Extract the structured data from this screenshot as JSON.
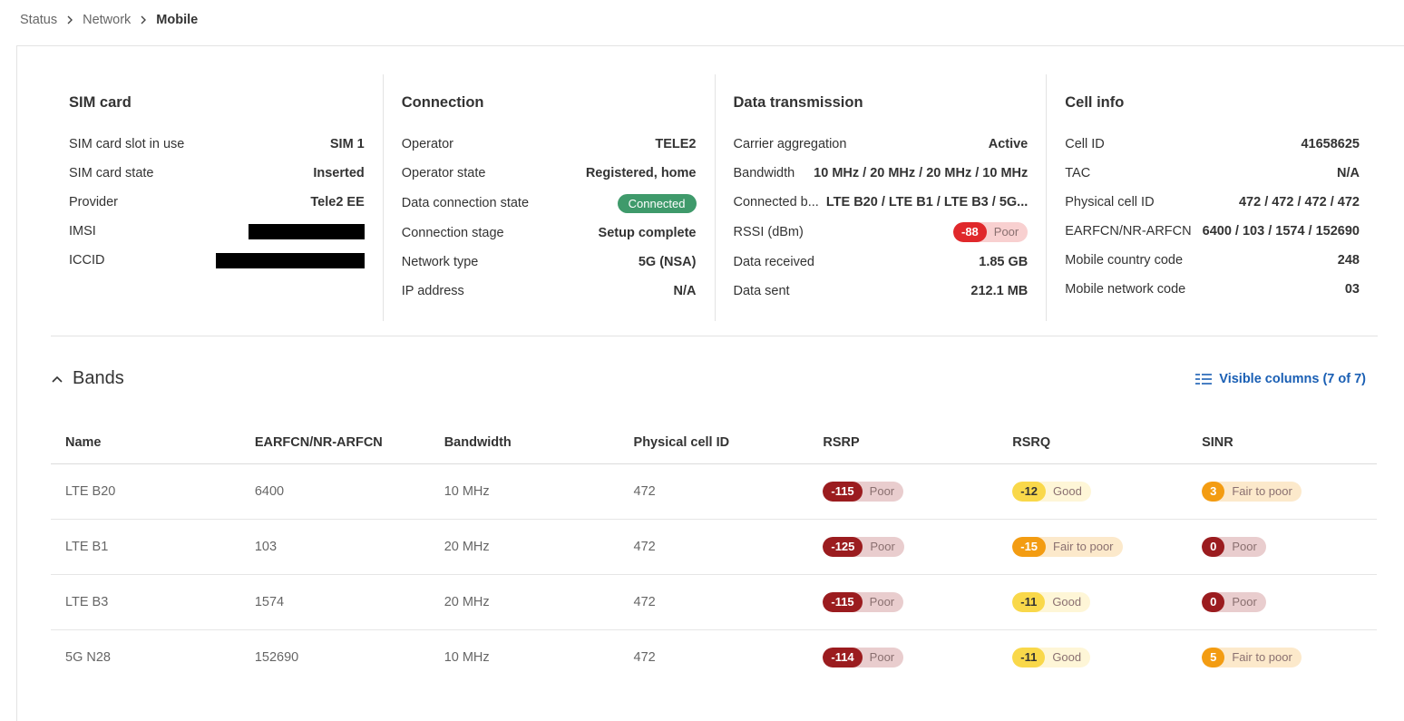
{
  "breadcrumb": {
    "items": [
      "Status",
      "Network",
      "Mobile"
    ]
  },
  "panels": [
    {
      "title": "SIM card",
      "rows": [
        {
          "label": "SIM card slot in use",
          "value": "SIM 1"
        },
        {
          "label": "SIM card state",
          "value": "Inserted"
        },
        {
          "label": "Provider",
          "value": "Tele2 EE"
        },
        {
          "label": "IMSI",
          "redacted": true
        },
        {
          "label": "ICCID",
          "redacted": true
        }
      ]
    },
    {
      "title": "Connection",
      "rows": [
        {
          "label": "Operator",
          "value": "TELE2"
        },
        {
          "label": "Operator state",
          "value": "Registered, home"
        },
        {
          "label": "Data connection state",
          "status": "Connected",
          "color": "#3f9a6b"
        },
        {
          "label": "Connection stage",
          "value": "Setup complete"
        },
        {
          "label": "Network type",
          "value": "5G (NSA)"
        },
        {
          "label": "IP address",
          "value": "N/A"
        }
      ]
    },
    {
      "title": "Data transmission",
      "rows": [
        {
          "label": "Carrier aggregation",
          "value": "Active"
        },
        {
          "label": "Bandwidth",
          "value": "10 MHz / 20 MHz / 20 MHz / 10 MHz"
        },
        {
          "label": "Connected b...",
          "value": "LTE B20 / LTE B1 / LTE B3 / 5G..."
        },
        {
          "label": "RSSI (dBm)",
          "badge": {
            "value": -88,
            "rating": "Poor",
            "color": "#e0282b",
            "text_color": "#ffffff"
          }
        },
        {
          "label": "Data received",
          "value": "1.85 GB"
        },
        {
          "label": "Data sent",
          "value": "212.1 MB"
        }
      ]
    },
    {
      "title": "Cell info",
      "rows": [
        {
          "label": "Cell ID",
          "value": "41658625"
        },
        {
          "label": "TAC",
          "value": "N/A"
        },
        {
          "label": "Physical cell ID",
          "value": "472 / 472 / 472 / 472"
        },
        {
          "label": "EARFCN/NR-ARFCN",
          "value": "6400 / 103 / 1574 / 152690"
        },
        {
          "label": "Mobile country code",
          "value": "248"
        },
        {
          "label": "Mobile network code",
          "value": "03"
        }
      ]
    }
  ],
  "bands": {
    "title": "Bands",
    "visible_columns": "Visible columns (7 of 7)",
    "columns": [
      "Name",
      "EARFCN/NR-ARFCN",
      "Bandwidth",
      "Physical cell ID",
      "RSRP",
      "RSRQ",
      "SINR"
    ],
    "rows": [
      [
        "LTE B20",
        6400,
        "10 MHz",
        472,
        {
          "value": -115,
          "rating": "Poor",
          "color": "#9b1c1f",
          "text_color": "#ffffff"
        },
        {
          "value": -12,
          "rating": "Good",
          "color": "#f9d84a",
          "text_color": "#333333"
        },
        {
          "value": 3,
          "rating": "Fair to poor",
          "color": "#f39c12",
          "text_color": "#ffffff"
        }
      ],
      [
        "LTE B1",
        103,
        "20 MHz",
        472,
        {
          "value": -125,
          "rating": "Poor",
          "color": "#9b1c1f",
          "text_color": "#ffffff"
        },
        {
          "value": -15,
          "rating": "Fair to poor",
          "color": "#f39c12",
          "text_color": "#ffffff"
        },
        {
          "value": 0,
          "rating": "Poor",
          "color": "#9b1c1f",
          "text_color": "#ffffff"
        }
      ],
      [
        "LTE B3",
        1574,
        "20 MHz",
        472,
        {
          "value": -115,
          "rating": "Poor",
          "color": "#9b1c1f",
          "text_color": "#ffffff"
        },
        {
          "value": -11,
          "rating": "Good",
          "color": "#f9d84a",
          "text_color": "#333333"
        },
        {
          "value": 0,
          "rating": "Poor",
          "color": "#9b1c1f",
          "text_color": "#ffffff"
        }
      ],
      [
        "5G N28",
        152690,
        "10 MHz",
        472,
        {
          "value": -114,
          "rating": "Poor",
          "color": "#9b1c1f",
          "text_color": "#ffffff"
        },
        {
          "value": -11,
          "rating": "Good",
          "color": "#f9d84a",
          "text_color": "#333333"
        },
        {
          "value": 5,
          "rating": "Fair to poor",
          "color": "#f39c12",
          "text_color": "#ffffff"
        }
      ]
    ]
  }
}
